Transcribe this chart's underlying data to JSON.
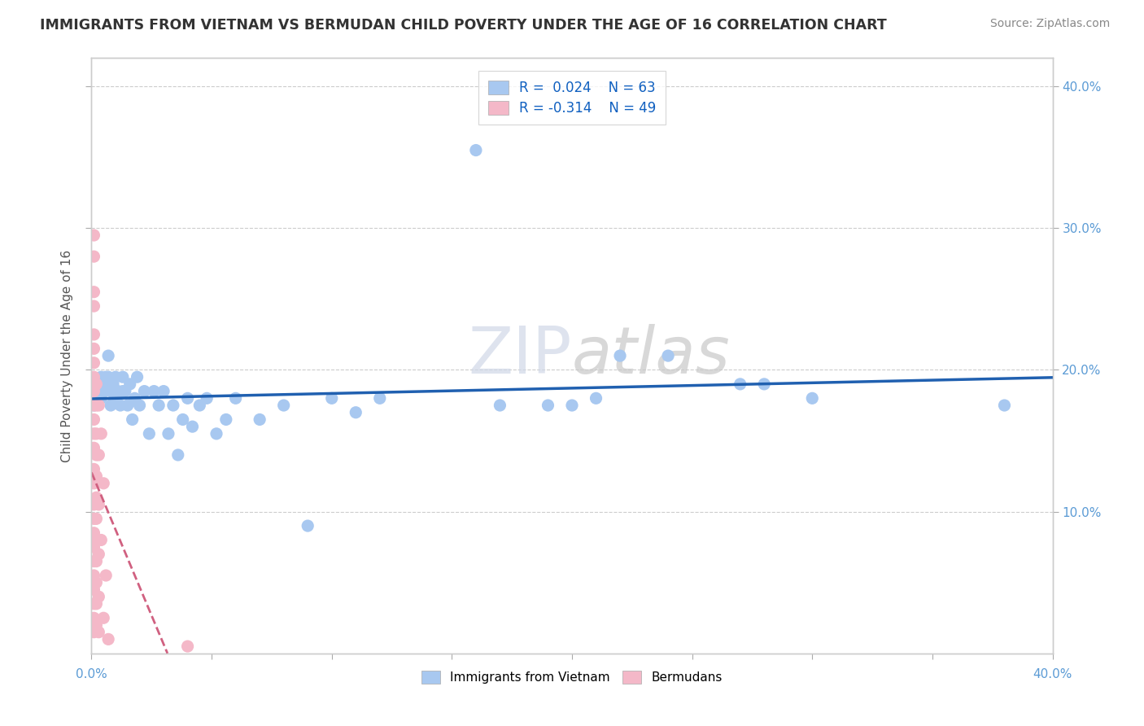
{
  "title": "IMMIGRANTS FROM VIETNAM VS BERMUDAN CHILD POVERTY UNDER THE AGE OF 16 CORRELATION CHART",
  "source": "Source: ZipAtlas.com",
  "ylabel": "Child Poverty Under the Age of 16",
  "xlim": [
    0.0,
    0.4
  ],
  "ylim": [
    0.0,
    0.42
  ],
  "watermark": "ZIPatlas",
  "vietnam_color": "#a8c8f0",
  "bermuda_color": "#f4b8c8",
  "vietnam_line_color": "#2060b0",
  "bermuda_line_color": "#d06080",
  "vietnam_scatter": [
    [
      0.001,
      0.175
    ],
    [
      0.002,
      0.19
    ],
    [
      0.002,
      0.185
    ],
    [
      0.003,
      0.19
    ],
    [
      0.003,
      0.185
    ],
    [
      0.004,
      0.195
    ],
    [
      0.004,
      0.18
    ],
    [
      0.005,
      0.19
    ],
    [
      0.005,
      0.185
    ],
    [
      0.006,
      0.195
    ],
    [
      0.006,
      0.19
    ],
    [
      0.007,
      0.21
    ],
    [
      0.007,
      0.195
    ],
    [
      0.008,
      0.185
    ],
    [
      0.008,
      0.175
    ],
    [
      0.009,
      0.19
    ],
    [
      0.009,
      0.185
    ],
    [
      0.01,
      0.195
    ],
    [
      0.01,
      0.18
    ],
    [
      0.011,
      0.185
    ],
    [
      0.012,
      0.175
    ],
    [
      0.013,
      0.195
    ],
    [
      0.013,
      0.185
    ],
    [
      0.014,
      0.185
    ],
    [
      0.015,
      0.175
    ],
    [
      0.016,
      0.19
    ],
    [
      0.017,
      0.165
    ],
    [
      0.018,
      0.18
    ],
    [
      0.019,
      0.195
    ],
    [
      0.02,
      0.175
    ],
    [
      0.022,
      0.185
    ],
    [
      0.024,
      0.155
    ],
    [
      0.026,
      0.185
    ],
    [
      0.028,
      0.175
    ],
    [
      0.03,
      0.185
    ],
    [
      0.032,
      0.155
    ],
    [
      0.034,
      0.175
    ],
    [
      0.036,
      0.14
    ],
    [
      0.038,
      0.165
    ],
    [
      0.04,
      0.18
    ],
    [
      0.042,
      0.16
    ],
    [
      0.045,
      0.175
    ],
    [
      0.048,
      0.18
    ],
    [
      0.052,
      0.155
    ],
    [
      0.056,
      0.165
    ],
    [
      0.06,
      0.18
    ],
    [
      0.07,
      0.165
    ],
    [
      0.08,
      0.175
    ],
    [
      0.09,
      0.09
    ],
    [
      0.1,
      0.18
    ],
    [
      0.11,
      0.17
    ],
    [
      0.12,
      0.18
    ],
    [
      0.16,
      0.355
    ],
    [
      0.17,
      0.175
    ],
    [
      0.19,
      0.175
    ],
    [
      0.2,
      0.175
    ],
    [
      0.21,
      0.18
    ],
    [
      0.22,
      0.21
    ],
    [
      0.24,
      0.21
    ],
    [
      0.27,
      0.19
    ],
    [
      0.28,
      0.19
    ],
    [
      0.3,
      0.18
    ],
    [
      0.38,
      0.175
    ]
  ],
  "bermuda_scatter": [
    [
      0.001,
      0.295
    ],
    [
      0.001,
      0.28
    ],
    [
      0.001,
      0.255
    ],
    [
      0.001,
      0.245
    ],
    [
      0.001,
      0.225
    ],
    [
      0.001,
      0.215
    ],
    [
      0.001,
      0.205
    ],
    [
      0.001,
      0.195
    ],
    [
      0.001,
      0.185
    ],
    [
      0.001,
      0.175
    ],
    [
      0.001,
      0.165
    ],
    [
      0.001,
      0.155
    ],
    [
      0.001,
      0.145
    ],
    [
      0.001,
      0.13
    ],
    [
      0.001,
      0.12
    ],
    [
      0.001,
      0.105
    ],
    [
      0.001,
      0.095
    ],
    [
      0.001,
      0.085
    ],
    [
      0.001,
      0.075
    ],
    [
      0.001,
      0.065
    ],
    [
      0.001,
      0.055
    ],
    [
      0.001,
      0.045
    ],
    [
      0.001,
      0.035
    ],
    [
      0.001,
      0.025
    ],
    [
      0.001,
      0.015
    ],
    [
      0.002,
      0.19
    ],
    [
      0.002,
      0.175
    ],
    [
      0.002,
      0.155
    ],
    [
      0.002,
      0.14
    ],
    [
      0.002,
      0.125
    ],
    [
      0.002,
      0.11
    ],
    [
      0.002,
      0.095
    ],
    [
      0.002,
      0.08
    ],
    [
      0.002,
      0.065
    ],
    [
      0.002,
      0.05
    ],
    [
      0.002,
      0.035
    ],
    [
      0.002,
      0.02
    ],
    [
      0.003,
      0.175
    ],
    [
      0.003,
      0.14
    ],
    [
      0.003,
      0.105
    ],
    [
      0.003,
      0.07
    ],
    [
      0.003,
      0.04
    ],
    [
      0.003,
      0.015
    ],
    [
      0.004,
      0.155
    ],
    [
      0.004,
      0.08
    ],
    [
      0.005,
      0.12
    ],
    [
      0.005,
      0.025
    ],
    [
      0.006,
      0.055
    ],
    [
      0.007,
      0.01
    ],
    [
      0.04,
      0.005
    ]
  ]
}
